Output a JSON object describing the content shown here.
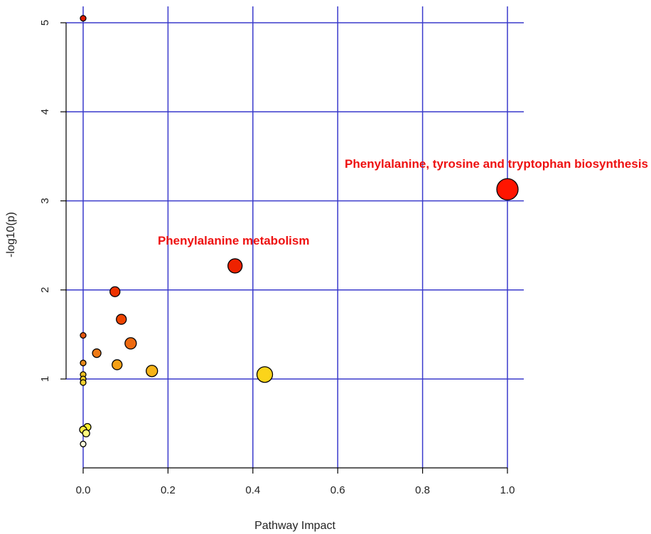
{
  "chart_data": {
    "type": "scatter",
    "xlabel": "Pathway Impact",
    "ylabel": "-log10(p)",
    "xlim": [
      -0.04,
      1.04
    ],
    "ylim": [
      0.0,
      5.2
    ],
    "x_ticks": [
      0.0,
      0.2,
      0.4,
      0.6,
      0.8,
      1.0
    ],
    "x_tick_labels": [
      "0.0",
      "0.2",
      "0.4",
      "0.6",
      "0.8",
      "1.0"
    ],
    "y_ticks": [
      1,
      2,
      3,
      4,
      5
    ],
    "y_tick_labels": [
      "1",
      "2",
      "3",
      "4",
      "5"
    ],
    "grid": true,
    "grid_color": "#3a3acc",
    "point_outline": "#000000",
    "points": [
      {
        "x": 0.0,
        "y": 5.05,
        "r": 4,
        "color": "#dd1a00"
      },
      {
        "x": 1.0,
        "y": 3.13,
        "r": 15,
        "color": "#ff1500"
      },
      {
        "x": 0.358,
        "y": 2.27,
        "r": 10,
        "color": "#ee2200"
      },
      {
        "x": 0.075,
        "y": 1.98,
        "r": 7,
        "color": "#ee3300"
      },
      {
        "x": 0.09,
        "y": 1.67,
        "r": 7,
        "color": "#ee4400"
      },
      {
        "x": 0.0,
        "y": 1.49,
        "r": 4,
        "color": "#e25510"
      },
      {
        "x": 0.112,
        "y": 1.4,
        "r": 8,
        "color": "#ee6a10"
      },
      {
        "x": 0.032,
        "y": 1.29,
        "r": 6,
        "color": "#ee7a15"
      },
      {
        "x": 0.0,
        "y": 1.18,
        "r": 4,
        "color": "#e68a1c"
      },
      {
        "x": 0.08,
        "y": 1.16,
        "r": 7,
        "color": "#f5a015"
      },
      {
        "x": 0.162,
        "y": 1.09,
        "r": 8,
        "color": "#f6b318"
      },
      {
        "x": 0.428,
        "y": 1.05,
        "r": 11,
        "color": "#fbd41a"
      },
      {
        "x": 0.0,
        "y": 1.05,
        "r": 4,
        "color": "#f0c020"
      },
      {
        "x": 0.0,
        "y": 1.0,
        "r": 4,
        "color": "#f4cc25"
      },
      {
        "x": 0.0,
        "y": 0.96,
        "r": 4,
        "color": "#f4d030"
      },
      {
        "x": 0.01,
        "y": 0.46,
        "r": 5,
        "color": "#fff030"
      },
      {
        "x": 0.0,
        "y": 0.43,
        "r": 5,
        "color": "#ffee40"
      },
      {
        "x": 0.007,
        "y": 0.39,
        "r": 5,
        "color": "#fffa80"
      },
      {
        "x": 0.0,
        "y": 0.27,
        "r": 4,
        "color": "#ffffdd"
      }
    ],
    "annotations": [
      {
        "text": "Phenylalanine, tyrosine and tryptophan biosynthesis",
        "x": 1.0,
        "y": 3.13,
        "anchor": "end",
        "color": "#ee1111"
      },
      {
        "text": "Phenylalanine metabolism",
        "x": 0.358,
        "y": 2.27,
        "anchor": "middle",
        "color": "#ee1111"
      }
    ]
  }
}
